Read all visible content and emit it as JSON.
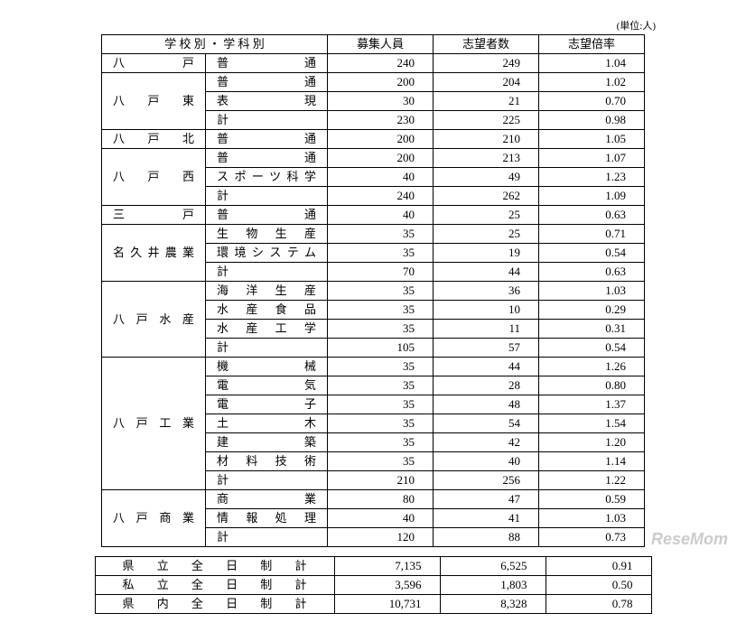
{
  "unit": "(単位:人)",
  "headers": {
    "school_dept": "学 校 別 ・ 学 科 別",
    "capacity": "募集人員",
    "applicants": "志望者数",
    "ratio": "志望倍率"
  },
  "colors": {
    "border": "#000000",
    "background": "#ffffff",
    "watermark_gray": "#cccccc",
    "watermark_pink": "#e6a8d4"
  },
  "groups": [
    {
      "school": "八戸",
      "rows": [
        {
          "dept": "普通",
          "cap": "240",
          "app": "249",
          "ratio": "1.04"
        }
      ]
    },
    {
      "school": "八戸東",
      "rows": [
        {
          "dept": "普通",
          "cap": "200",
          "app": "204",
          "ratio": "1.02"
        },
        {
          "dept": "表現",
          "cap": "30",
          "app": "21",
          "ratio": "0.70"
        },
        {
          "dept": "計",
          "cap": "230",
          "app": "225",
          "ratio": "0.98"
        }
      ]
    },
    {
      "school": "八戸北",
      "rows": [
        {
          "dept": "普通",
          "cap": "200",
          "app": "210",
          "ratio": "1.05"
        }
      ]
    },
    {
      "school": "八戸西",
      "rows": [
        {
          "dept": "普通",
          "cap": "200",
          "app": "213",
          "ratio": "1.07"
        },
        {
          "dept": "スポーツ科学",
          "cap": "40",
          "app": "49",
          "ratio": "1.23"
        },
        {
          "dept": "計",
          "cap": "240",
          "app": "262",
          "ratio": "1.09"
        }
      ]
    },
    {
      "school": "三戸",
      "rows": [
        {
          "dept": "普通",
          "cap": "40",
          "app": "25",
          "ratio": "0.63"
        }
      ]
    },
    {
      "school": "名久井農業",
      "rows": [
        {
          "dept": "生物生産",
          "cap": "35",
          "app": "25",
          "ratio": "0.71"
        },
        {
          "dept": "環境システム",
          "cap": "35",
          "app": "19",
          "ratio": "0.54"
        },
        {
          "dept": "計",
          "cap": "70",
          "app": "44",
          "ratio": "0.63"
        }
      ]
    },
    {
      "school": "八戸水産",
      "rows": [
        {
          "dept": "海洋生産",
          "cap": "35",
          "app": "36",
          "ratio": "1.03"
        },
        {
          "dept": "水産食品",
          "cap": "35",
          "app": "10",
          "ratio": "0.29"
        },
        {
          "dept": "水産工学",
          "cap": "35",
          "app": "11",
          "ratio": "0.31"
        },
        {
          "dept": "計",
          "cap": "105",
          "app": "57",
          "ratio": "0.54"
        }
      ]
    },
    {
      "school": "八戸工業",
      "rows": [
        {
          "dept": "機械",
          "cap": "35",
          "app": "44",
          "ratio": "1.26"
        },
        {
          "dept": "電気",
          "cap": "35",
          "app": "28",
          "ratio": "0.80"
        },
        {
          "dept": "電子",
          "cap": "35",
          "app": "48",
          "ratio": "1.37"
        },
        {
          "dept": "土木",
          "cap": "35",
          "app": "54",
          "ratio": "1.54"
        },
        {
          "dept": "建築",
          "cap": "35",
          "app": "42",
          "ratio": "1.20"
        },
        {
          "dept": "材料技術",
          "cap": "35",
          "app": "40",
          "ratio": "1.14"
        },
        {
          "dept": "計",
          "cap": "210",
          "app": "256",
          "ratio": "1.22"
        }
      ]
    },
    {
      "school": "八戸商業",
      "rows": [
        {
          "dept": "商業",
          "cap": "80",
          "app": "47",
          "ratio": "0.59"
        },
        {
          "dept": "情報処理",
          "cap": "40",
          "app": "41",
          "ratio": "1.03"
        },
        {
          "dept": "計",
          "cap": "120",
          "app": "88",
          "ratio": "0.73"
        }
      ]
    }
  ],
  "totals": [
    {
      "label": "県立全日制計",
      "cap": "7,135",
      "app": "6,525",
      "ratio": "0.91"
    },
    {
      "label": "私立全日制計",
      "cap": "3,596",
      "app": "1,803",
      "ratio": "0.50"
    },
    {
      "label": "県内全日制計",
      "cap": "10,731",
      "app": "8,328",
      "ratio": "0.78"
    }
  ],
  "watermark": "ReseMom"
}
